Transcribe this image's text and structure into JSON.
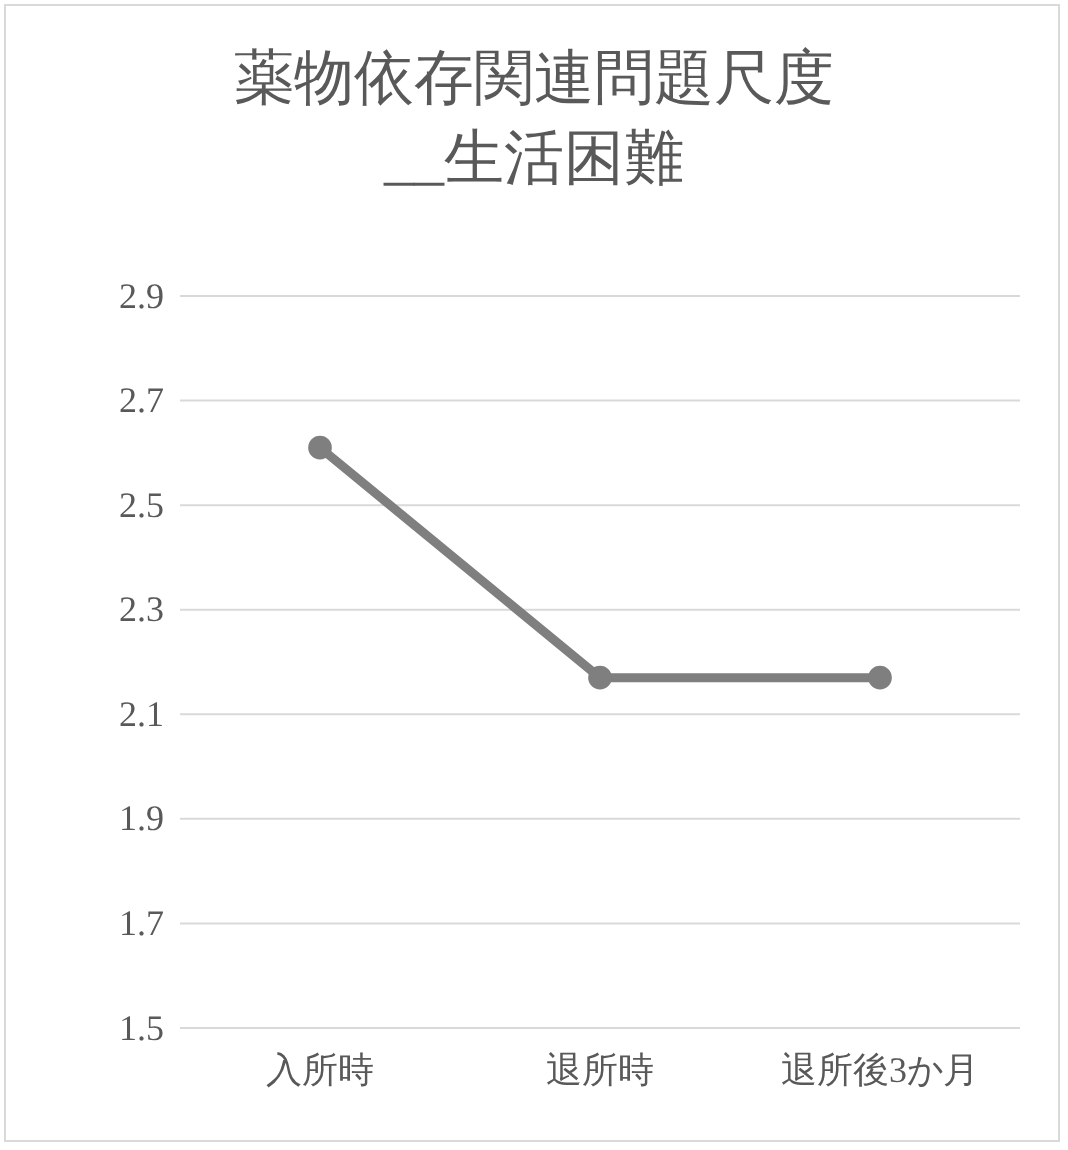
{
  "chart_data": {
    "type": "line",
    "title": "薬物依存関連問題尺度__生活困難",
    "categories": [
      "入所時",
      "退所時",
      "退所後3か月"
    ],
    "series": [
      {
        "color": "#7f7f7f",
        "values": [
          2.61,
          2.17,
          2.17
        ]
      }
    ],
    "ylim": [
      1.5,
      2.9
    ],
    "yticks": [
      1.5,
      1.7,
      1.9,
      2.1,
      2.3,
      2.5,
      2.7,
      2.9
    ],
    "grid": "y",
    "marker": "circle",
    "line_style": "solid"
  }
}
